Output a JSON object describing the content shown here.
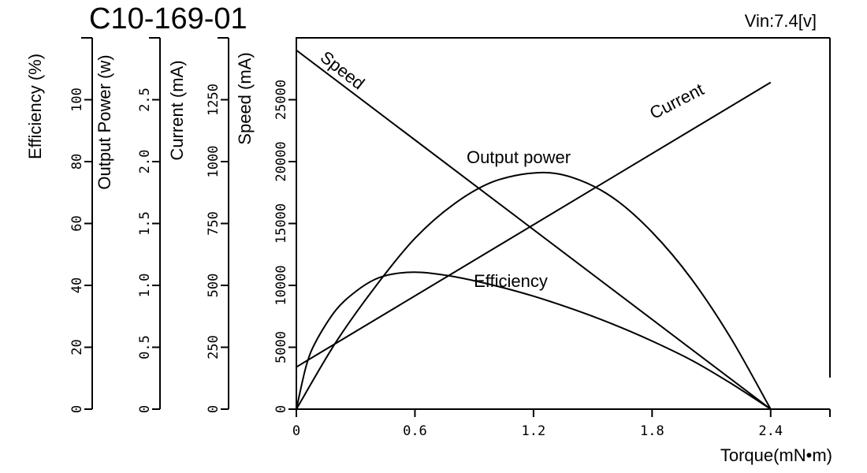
{
  "chart_data": {
    "type": "line",
    "title": "C10-169-01",
    "voltage_note": "Vin:7.4[v]",
    "xlabel": "Torque(mN•m)",
    "xlim": [
      0,
      2.7
    ],
    "x_ticks": [
      {
        "value": 0,
        "label": "0"
      },
      {
        "value": 0.6,
        "label": "0.6"
      },
      {
        "value": 1.2,
        "label": "1.2"
      },
      {
        "value": 1.8,
        "label": "1.8"
      },
      {
        "value": 2.4,
        "label": "2.4"
      }
    ],
    "y_axes": [
      {
        "key": "efficiency",
        "label": "Efficiency (%)",
        "range": [
          0,
          120
        ],
        "ticks": [
          {
            "value": 0,
            "label": "0"
          },
          {
            "value": 20,
            "label": "20"
          },
          {
            "value": 40,
            "label": "40"
          },
          {
            "value": 60,
            "label": "60"
          },
          {
            "value": 80,
            "label": "80"
          },
          {
            "value": 100,
            "label": "100"
          }
        ]
      },
      {
        "key": "power",
        "label": "Output Power (w)",
        "range": [
          0,
          3.0
        ],
        "ticks": [
          {
            "value": 0,
            "label": "0"
          },
          {
            "value": 0.5,
            "label": "0.5"
          },
          {
            "value": 1.0,
            "label": "1.0"
          },
          {
            "value": 1.5,
            "label": "1.5"
          },
          {
            "value": 2.0,
            "label": "2.0"
          },
          {
            "value": 2.5,
            "label": "2.5"
          }
        ]
      },
      {
        "key": "current",
        "label": "Current (mA)",
        "range": [
          0,
          1500
        ],
        "ticks": [
          {
            "value": 0,
            "label": "0"
          },
          {
            "value": 250,
            "label": "250"
          },
          {
            "value": 500,
            "label": "500"
          },
          {
            "value": 750,
            "label": "750"
          },
          {
            "value": 1000,
            "label": "1000"
          },
          {
            "value": 1250,
            "label": "1250"
          }
        ]
      },
      {
        "key": "speed",
        "label": "Speed  (mA)",
        "range": [
          0,
          30000
        ],
        "ticks": [
          {
            "value": 0,
            "label": "0"
          },
          {
            "value": 5000,
            "label": "5000"
          },
          {
            "value": 10000,
            "label": "10000"
          },
          {
            "value": 15000,
            "label": "15000"
          },
          {
            "value": 20000,
            "label": "20000"
          },
          {
            "value": 25000,
            "label": "25000"
          }
        ]
      }
    ],
    "series": [
      {
        "name": "Speed",
        "axis": "speed",
        "x": [
          0,
          2.4
        ],
        "y": [
          29000,
          0
        ]
      },
      {
        "name": "Current",
        "axis": "current",
        "x": [
          0,
          2.4
        ],
        "y": [
          170,
          1320
        ]
      },
      {
        "name": "Output power",
        "axis": "power",
        "x": [
          0,
          0.2,
          0.4,
          0.6,
          0.8,
          1.0,
          1.22,
          1.4,
          1.6,
          1.8,
          2.0,
          2.2,
          2.4
        ],
        "y": [
          0,
          0.54,
          0.99,
          1.38,
          1.66,
          1.84,
          1.91,
          1.87,
          1.71,
          1.43,
          1.05,
          0.57,
          0
        ]
      },
      {
        "name": "Efficiency",
        "axis": "efficiency",
        "x": [
          0,
          0.05,
          0.1,
          0.2,
          0.3,
          0.4,
          0.5,
          0.63,
          0.8,
          1.0,
          1.2,
          1.4,
          1.6,
          1.8,
          2.0,
          2.2,
          2.4
        ],
        "y": [
          0,
          14,
          22,
          32,
          38,
          42,
          43.8,
          44.2,
          42.8,
          40,
          36.5,
          32.3,
          27.5,
          22,
          15.8,
          8.3,
          0
        ]
      }
    ]
  }
}
